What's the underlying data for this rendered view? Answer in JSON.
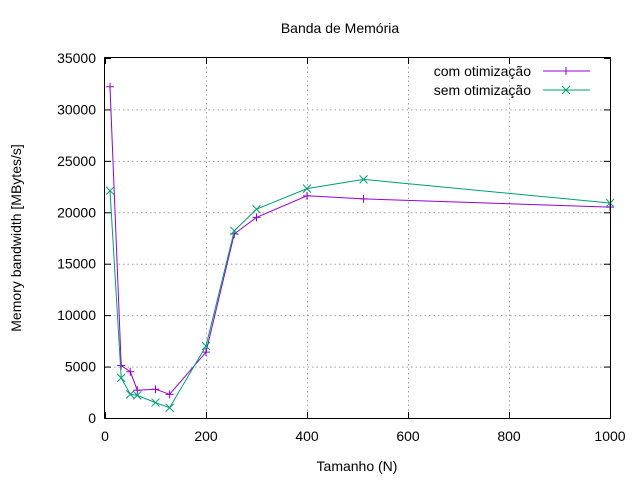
{
  "chart_data": {
    "type": "line",
    "title": "Banda de Memória",
    "xlabel": "Tamanho (N)",
    "ylabel": "Memory bandwidth [MBytes/s]",
    "xlim": [
      0,
      1000
    ],
    "ylim": [
      0,
      35000
    ],
    "xticks": [
      0,
      200,
      400,
      600,
      800,
      1000
    ],
    "yticks": [
      0,
      5000,
      10000,
      15000,
      20000,
      25000,
      30000,
      35000
    ],
    "grid": true,
    "legend_position": "top-right",
    "series": [
      {
        "name": "com otimização",
        "color": "#9400d3",
        "marker": "plus",
        "x": [
          10,
          32,
          50,
          64,
          100,
          128,
          200,
          256,
          300,
          400,
          512,
          1000
        ],
        "y": [
          32200,
          5100,
          4500,
          2700,
          2800,
          2300,
          6400,
          17900,
          19500,
          21600,
          21300,
          20500
        ]
      },
      {
        "name": "sem otimização",
        "color": "#009e73",
        "marker": "cross",
        "x": [
          10,
          32,
          50,
          64,
          100,
          128,
          200,
          256,
          300,
          400,
          512,
          1000
        ],
        "y": [
          22100,
          3900,
          2300,
          2200,
          1500,
          1000,
          7000,
          18200,
          20300,
          22300,
          23200,
          20900
        ]
      }
    ]
  }
}
